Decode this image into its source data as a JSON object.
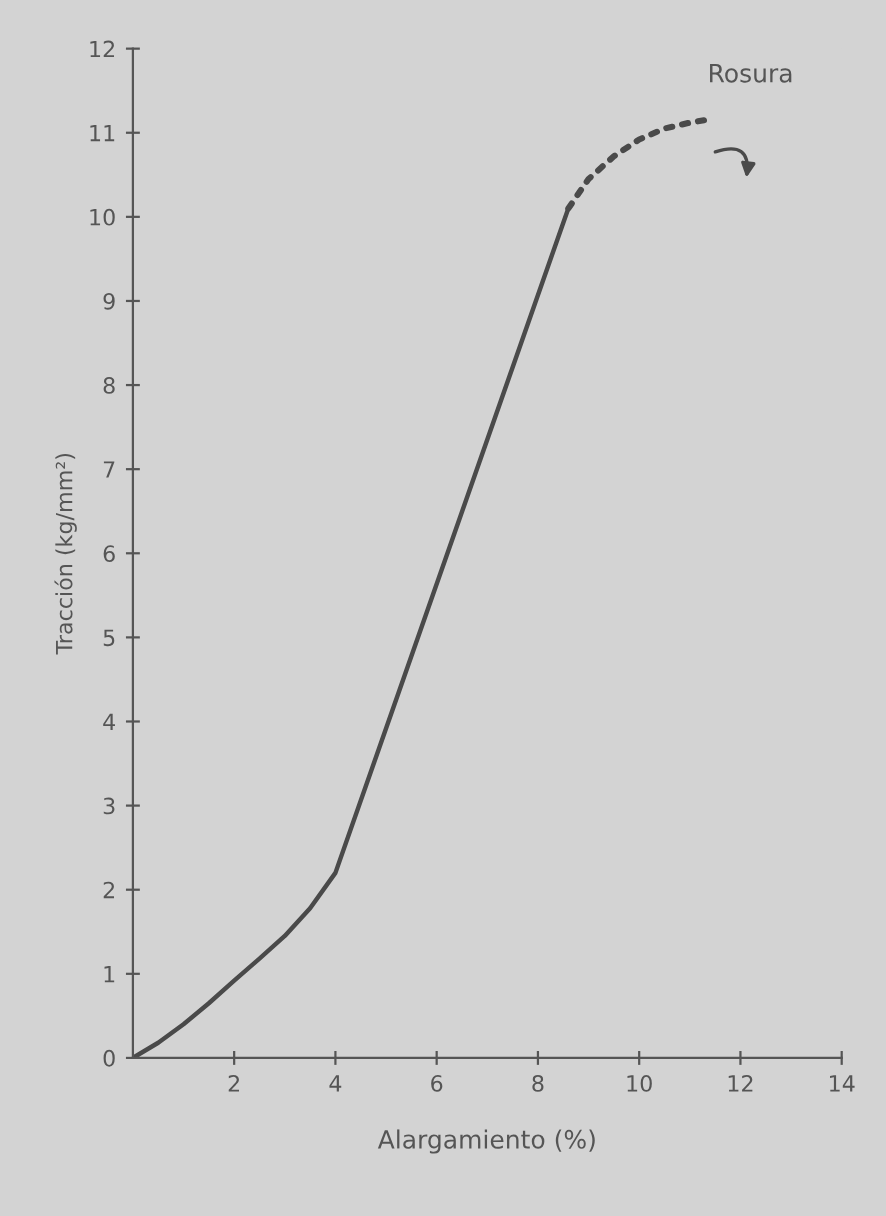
{
  "chart_data": {
    "type": "line",
    "xlabel": "Alargamiento (%)",
    "ylabel": "Tracción (kg/mm²)",
    "xlim": [
      0,
      14
    ],
    "xticks": [
      2,
      4,
      6,
      8,
      10,
      12,
      14
    ],
    "ylim": [
      0,
      12
    ],
    "yticks": [
      0,
      1,
      2,
      3,
      4,
      5,
      6,
      7,
      8,
      9,
      10,
      11,
      12
    ],
    "series": [
      {
        "color": "#4a4a4a",
        "line_style": "solid",
        "x": [
          0,
          0.5,
          1,
          1.5,
          2,
          2.5,
          3,
          3.5,
          4,
          8.6
        ],
        "values": [
          0,
          0.18,
          0.4,
          0.65,
          0.92,
          1.18,
          1.45,
          1.78,
          2.2,
          10.1
        ]
      },
      {
        "color": "#4a4a4a",
        "line_style": "dotted",
        "x": [
          8.6,
          9.0,
          9.5,
          10.0,
          10.5,
          11.0,
          11.3
        ],
        "values": [
          10.1,
          10.45,
          10.72,
          10.92,
          11.05,
          11.12,
          11.15
        ]
      }
    ],
    "annotations": [
      {
        "text": "Rosura",
        "x": 11.3,
        "y": 11.15
      }
    ],
    "grid": false,
    "legend": false,
    "marker": "none"
  }
}
